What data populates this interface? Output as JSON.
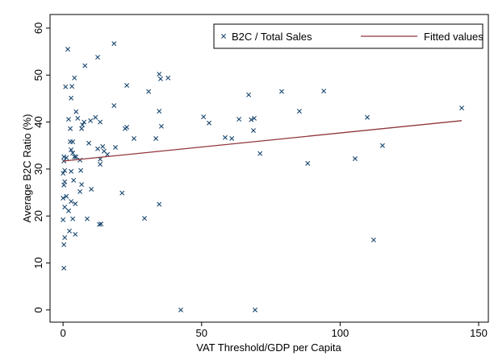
{
  "chart_data": {
    "type": "scatter",
    "x_label": "VAT Threshold/GDP per Capita",
    "y_label": "Average B2C Ratio (%)",
    "xlim": [
      -4.7,
      153.5
    ],
    "xticks": [
      0,
      50,
      100,
      150
    ],
    "ylim": [
      -2.6,
      62.9
    ],
    "yticks": [
      0,
      10,
      20,
      30,
      40,
      50,
      60
    ],
    "grid": false,
    "legend": "top-right",
    "series": [
      {
        "name": "B2C / Total Sales",
        "color": "#1a476f",
        "style": "markers",
        "x": [
          1.7,
          0.9,
          3.2,
          4.1,
          2.9,
          7.9,
          12.5,
          18.4,
          23,
          30.9,
          34.7,
          35.2,
          37.9,
          18.4,
          4.7,
          5.3,
          7,
          7.6,
          6.7,
          11.7,
          13.4,
          9.9,
          34.7,
          2.6,
          2,
          2.6,
          3.5,
          9.3,
          14.3,
          18.9,
          12.5,
          14.8,
          16,
          13.4,
          13.4,
          6.1,
          6.4,
          2.9,
          3.5,
          4.1,
          4.7,
          1.2,
          0.3,
          0.3,
          0.6,
          0,
          0.3,
          0.6,
          1.2,
          0,
          0.6,
          2,
          2.9,
          4.4,
          6.1,
          6.7,
          3.8,
          2.9,
          10.2,
          21.3,
          8.7,
          3.5,
          0,
          2.3,
          4.4,
          0.6,
          0.3,
          0.3,
          13.1,
          13.7,
          29.4,
          34.7,
          22.4,
          23,
          25.6,
          35.5,
          33.5,
          50.7,
          52.7,
          58.5,
          60.9,
          63.5,
          67,
          67.9,
          68.7,
          69,
          71.1,
          78.9,
          85.3,
          88.3,
          94.1,
          105.4,
          109.8,
          112.1,
          115.3,
          143.9,
          42.5,
          69.3
        ],
        "values": [
          55.5,
          47.5,
          47.6,
          49.4,
          45.1,
          52,
          53.8,
          56.7,
          47.8,
          46.5,
          50.2,
          49.2,
          49.4,
          43.5,
          42.2,
          40.8,
          39.4,
          40,
          38.6,
          41,
          40,
          40.3,
          42.3,
          38.6,
          40.6,
          35.8,
          35.8,
          35.5,
          34.8,
          34.6,
          34.3,
          33.8,
          33.1,
          32.1,
          31,
          31.9,
          29.7,
          34.1,
          33.4,
          32.6,
          32.6,
          32.4,
          32.6,
          31.7,
          29.7,
          29.1,
          26.6,
          27.3,
          24.2,
          23.8,
          21.9,
          21.1,
          23.1,
          22.6,
          25.2,
          26.7,
          27.6,
          29.5,
          25.7,
          24.9,
          19.4,
          19.4,
          19.2,
          16.8,
          16.1,
          15.4,
          13.9,
          8.9,
          18.2,
          18.3,
          19.5,
          22.5,
          38.6,
          38.9,
          36.5,
          39.1,
          36.5,
          41.1,
          39.8,
          36.7,
          36.5,
          40.6,
          45.8,
          40.5,
          38.2,
          40.8,
          33.3,
          46.5,
          42.3,
          31.2,
          46.6,
          32.2,
          41,
          14.9,
          35,
          43,
          0,
          0
        ]
      },
      {
        "name": "Fitted values",
        "color": "#90353b",
        "style": "line",
        "x": [
          0,
          143.9
        ],
        "values": [
          31.7,
          40.3
        ]
      }
    ]
  }
}
